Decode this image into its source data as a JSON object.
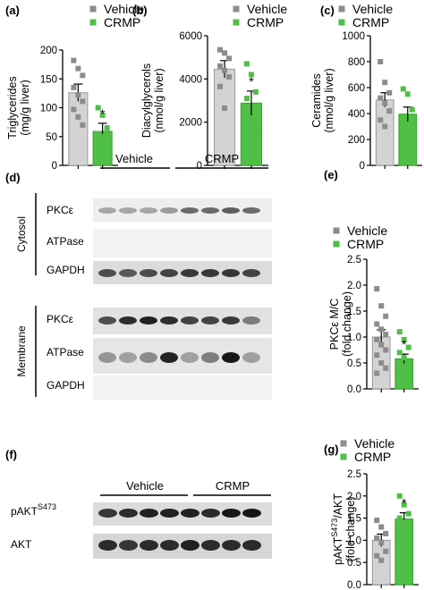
{
  "colors": {
    "vehicle": "#d3d3d3",
    "vehicle_marker": "#8c8c8c",
    "crmp": "#4fbf45",
    "crmp_marker": "#2a9a2a"
  },
  "legend": {
    "vehicle": "Vehicle",
    "crmp": "CRMP"
  },
  "chart_data": [
    {
      "panel": "(a)",
      "type": "bar",
      "categories": [
        "Vehicle",
        "CRMP"
      ],
      "ylabel": [
        "Triglycerides",
        "(mg/g liver)"
      ],
      "ylim": [
        0,
        200
      ],
      "yticks": [
        0,
        50,
        100,
        150,
        200
      ],
      "values": [
        126,
        59
      ],
      "sem": [
        15,
        14
      ],
      "points": [
        [
          182,
          168,
          156,
          135,
          122,
          111,
          97,
          84,
          70
        ],
        [
          100,
          87,
          65,
          55,
          50,
          45,
          32,
          27
        ]
      ],
      "significance": [
        "",
        "*"
      ]
    },
    {
      "panel": "(b)",
      "type": "bar",
      "categories": [
        "Vehicle",
        "CRMP"
      ],
      "ylabel": [
        "Diacylglycerols",
        "(nmol/g liver)"
      ],
      "ylim": [
        0,
        6000
      ],
      "yticks": [
        0,
        2000,
        4000,
        6000
      ],
      "values": [
        4450,
        2880
      ],
      "sem": [
        400,
        560
      ],
      "points": [
        [
          5350,
          5200,
          4950,
          4600,
          4400,
          4100,
          3650,
          2650
        ],
        [
          4700,
          4200,
          3400,
          3100,
          1900,
          1600,
          1200
        ]
      ],
      "significance": [
        "",
        "*"
      ]
    },
    {
      "panel": "(c)",
      "type": "bar",
      "categories": [
        "Vehicle",
        "CRMP"
      ],
      "ylabel": [
        "Ceramides",
        "(nmol/g liver)"
      ],
      "ylim": [
        0,
        1000
      ],
      "yticks": [
        0,
        200,
        400,
        600,
        800,
        1000
      ],
      "values": [
        505,
        395
      ],
      "sem": [
        55,
        55
      ],
      "points": [
        [
          800,
          640,
          560,
          520,
          480,
          420,
          350,
          300
        ],
        [
          590,
          550,
          430,
          380,
          290,
          260
        ]
      ],
      "significance": [
        "",
        ""
      ]
    },
    {
      "panel": "(e)",
      "type": "bar",
      "categories": [
        "Vehicle",
        "CRMP"
      ],
      "ylabel": [
        "PKCε M/C",
        "(fold change)"
      ],
      "ylim": [
        0,
        2.5
      ],
      "yticks": [
        0.0,
        0.5,
        1.0,
        1.5,
        2.0,
        2.5
      ],
      "values": [
        1.0,
        0.58
      ],
      "sem": [
        0.14,
        0.09
      ],
      "points": [
        [
          1.93,
          1.6,
          1.4,
          1.25,
          1.15,
          1.05,
          0.95,
          0.85,
          0.75,
          0.65,
          0.5,
          0.4,
          0.3
        ],
        [
          1.1,
          0.95,
          0.8,
          0.7,
          0.6,
          0.5,
          0.4,
          0.3,
          0.2
        ]
      ],
      "significance": [
        "",
        "*"
      ]
    },
    {
      "panel": "(g)",
      "type": "bar",
      "categories": [
        "Vehicle",
        "CRMP"
      ],
      "ylabel": [
        "pAKTS473/AKT",
        "(fold change)"
      ],
      "ylim": [
        0,
        2.5
      ],
      "yticks": [
        0.0,
        0.5,
        1.0,
        1.5,
        2.0,
        2.5
      ],
      "values": [
        1.0,
        1.48
      ],
      "sem": [
        0.14,
        0.14
      ],
      "points": [
        [
          1.45,
          1.3,
          1.15,
          1.05,
          0.95,
          0.75,
          0.65,
          0.55
        ],
        [
          2.0,
          1.8,
          1.6,
          1.5,
          1.4,
          1.25,
          1.05,
          0.95
        ]
      ],
      "significance": [
        "",
        "*"
      ]
    }
  ],
  "western_d": {
    "label": "(d)",
    "group_labels": [
      "Vehicle",
      "CRMP"
    ],
    "fractions": [
      "Cytosol",
      "Membrane"
    ],
    "bands_cytosol": [
      "PKCε",
      "ATPase",
      "GAPDH"
    ],
    "bands_membrane": [
      "PKCε",
      "ATPase",
      "GAPDH"
    ]
  },
  "western_f": {
    "label": "(f)",
    "group_labels": [
      "Vehicle",
      "CRMP"
    ],
    "band_main": "pAKT",
    "band_main_sup": "S473",
    "band_total": "AKT"
  },
  "ylabel_g_parts": {
    "main": "pAKT",
    "sup": "S473",
    "rest": "/AKT",
    "line2": "(fold change)"
  }
}
